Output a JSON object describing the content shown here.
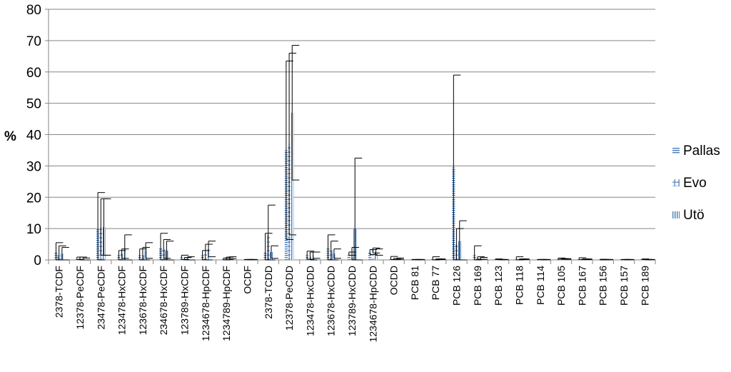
{
  "chart_data": {
    "type": "bar",
    "ylabel": "%",
    "xlabel": "",
    "ylim": [
      0,
      80
    ],
    "yticks": [
      0,
      10,
      20,
      30,
      40,
      50,
      60,
      70,
      80
    ],
    "grid": true,
    "legend_position": "right",
    "categories": [
      "2378-TCDF",
      "12378-PeCDF",
      "23478-PeCDF",
      "123478-HxCDF",
      "123678-HxCDF",
      "234678-HxCDF",
      "123789-HxCDF",
      "1234678-HpCDF",
      "1234789-HpCDF",
      "OCDF",
      "2378-TCDD",
      "12378-PeCDD",
      "123478-HxCDD",
      "123678-HxCDD",
      "123789-HxCDD",
      "1234678-HpCDD",
      "OCDD",
      "PCB 81",
      "PCB 77",
      "PCB 126",
      "PCB 169",
      "PCB 123",
      "PCB 118",
      "PCB 114",
      "PCB 105",
      "PCB 167",
      "PCB 156",
      "PCB 157",
      "PCB 189"
    ],
    "series": [
      {
        "name": "Pallas",
        "pattern": "horizontal",
        "values": [
          2.5,
          0.5,
          10,
          1.5,
          1.5,
          4,
          0.8,
          1.5,
          0.3,
          0.1,
          2.5,
          35,
          1.5,
          4,
          2,
          2.5,
          0.6,
          0.1,
          0.5,
          29.5,
          1.5,
          0.2,
          0.5,
          0.1,
          0.4,
          0.4,
          0.1,
          0.1,
          0.2
        ],
        "errors": [
          3,
          0.4,
          11.5,
          1.5,
          2,
          4.5,
          0.7,
          1.5,
          0.3,
          0.05,
          6,
          28.5,
          1.3,
          4,
          0.5,
          0.8,
          0.5,
          0.05,
          0.5,
          29.5,
          3,
          0.1,
          0.5,
          0.05,
          0.2,
          0.3,
          0.1,
          0.05,
          0.1
        ]
      },
      {
        "name": "Evo",
        "pattern": "plus",
        "values": [
          1.5,
          0.4,
          10.5,
          2,
          1.5,
          3.5,
          0.4,
          2,
          0.5,
          0.1,
          8,
          37,
          1,
          3,
          1,
          3,
          0.3,
          0.1,
          0.2,
          5,
          0.6,
          0.1,
          0.2,
          0.1,
          0.3,
          0.2,
          0.1,
          0.1,
          0.1
        ],
        "errors": [
          3,
          0.5,
          9,
          1.5,
          2.5,
          3,
          0.4,
          3,
          0.4,
          0.05,
          9.5,
          29,
          1.5,
          3,
          3,
          0.8,
          0.2,
          0.05,
          0.1,
          5,
          0.4,
          0.05,
          0.1,
          0.05,
          0.1,
          0.1,
          0.05,
          0.05,
          0.05
        ]
      },
      {
        "name": "Utö",
        "pattern": "vertical",
        "values": [
          2,
          0.3,
          10.5,
          3.5,
          3,
          3,
          0.5,
          3.5,
          0.7,
          0.1,
          2.5,
          47,
          1.5,
          2,
          10,
          2.5,
          0.4,
          0.1,
          0.2,
          6,
          0.5,
          0.1,
          0.2,
          0.1,
          0.3,
          0.2,
          0.1,
          0.1,
          0.1
        ],
        "errors": [
          2,
          0.3,
          9,
          4.5,
          2.5,
          3,
          0.5,
          2.5,
          0.3,
          0.05,
          2,
          21.5,
          1,
          1.5,
          22.5,
          1,
          0.2,
          0.05,
          0.1,
          6.5,
          0.3,
          0.05,
          0.1,
          0.05,
          0.1,
          0.1,
          0.05,
          0.05,
          0.05
        ]
      }
    ]
  },
  "colors": {
    "bar": "#4a7ebb",
    "grid": "#868686",
    "error": "#000000"
  }
}
